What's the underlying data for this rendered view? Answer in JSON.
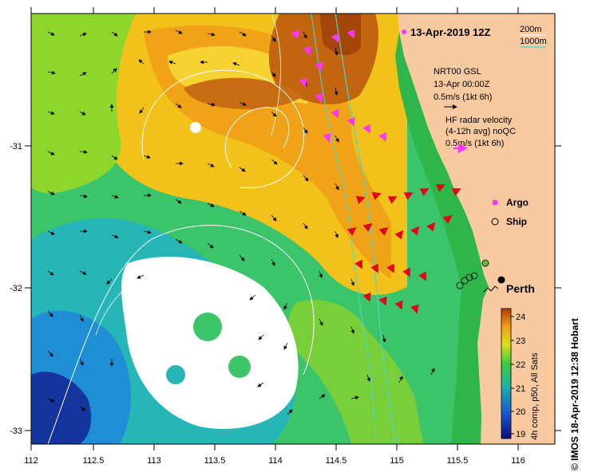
{
  "title": "13-Apr-2019 12Z",
  "depth_legend": {
    "line1": "200m",
    "line2": "1000m"
  },
  "model": {
    "line1": "NRT00 GSL",
    "line2": "13-Apr 00:00Z",
    "line3": "0.5m/s (1kt 6h)"
  },
  "radar": {
    "line1": "HF radar velocity",
    "line2": "(4-12h avg) noQC",
    "line3": "0.5m/s (1kt 6h)"
  },
  "legend": {
    "argo": "Argo",
    "ship": "Ship"
  },
  "city": "Perth",
  "colorbar": {
    "label": "4h comp, p50, All Sats",
    "ticks": [
      "19",
      "20",
      "21",
      "22",
      "23",
      "24"
    ]
  },
  "x_ticks": [
    "112",
    "112.5",
    "113",
    "113.5",
    "114",
    "114.5",
    "115",
    "115.5",
    "116"
  ],
  "y_ticks": [
    "-31",
    "-32",
    "-33"
  ],
  "credit": "© IMOS 18-Apr-2019 12:38 Hobart",
  "colors": {
    "land": "#f9c9a0",
    "shelf_contour": "#49d6cf",
    "argo": "#ff33ff",
    "radar": "#e8001a"
  }
}
